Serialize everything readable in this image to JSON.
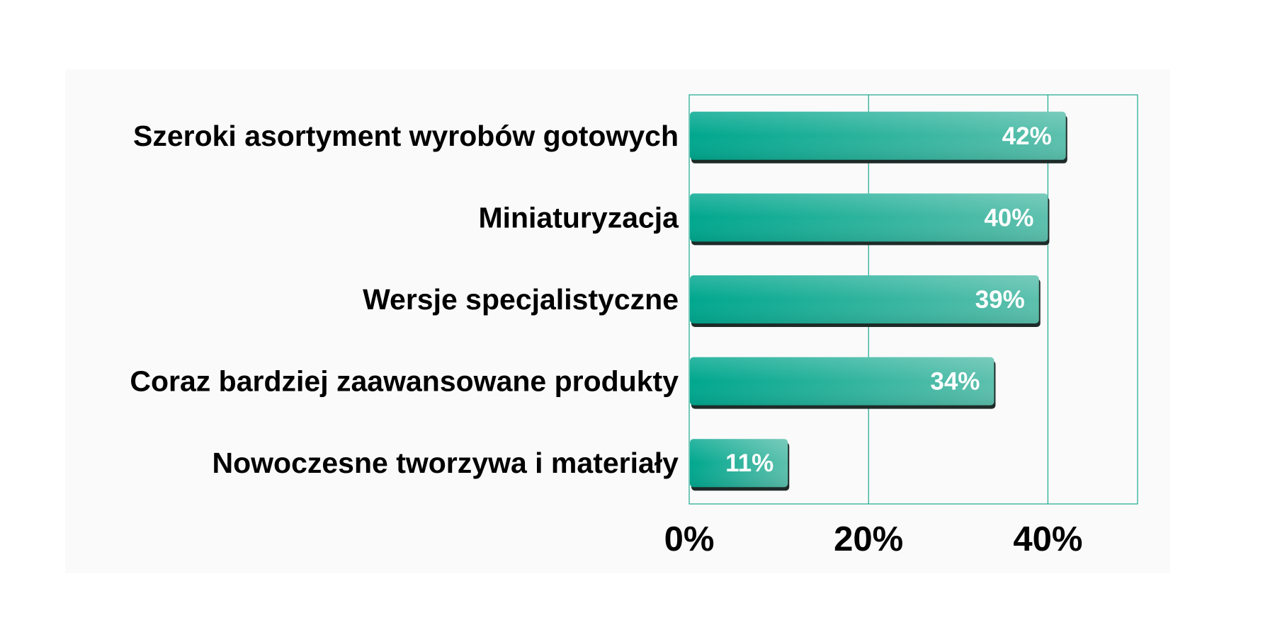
{
  "chart_data": {
    "type": "bar",
    "orientation": "horizontal",
    "categories": [
      "Szeroki asortyment wyrobów gotowych",
      "Miniaturyzacja",
      "Wersje specjalistyczne",
      "Coraz bardziej zaawansowane produkty",
      "Nowoczesne tworzywa i materiały"
    ],
    "values": [
      42,
      40,
      39,
      34,
      11
    ],
    "value_unit": "%",
    "data_labels": [
      "42%",
      "40%",
      "39%",
      "34%",
      "11%"
    ],
    "xlim": [
      0,
      50
    ],
    "x_ticks": [
      0,
      20,
      40
    ],
    "x_tick_labels": [
      "0%",
      "20%",
      "40%"
    ],
    "title": "",
    "xlabel": "",
    "ylabel": "",
    "grid": true,
    "legend": "none",
    "colors": {
      "bar_dark": "#00a78e",
      "bar_light": "#5cc0ad",
      "bar_shadow": "#1e2b28",
      "grid": "#1aa88e",
      "panel_background": "#fafafa"
    }
  }
}
